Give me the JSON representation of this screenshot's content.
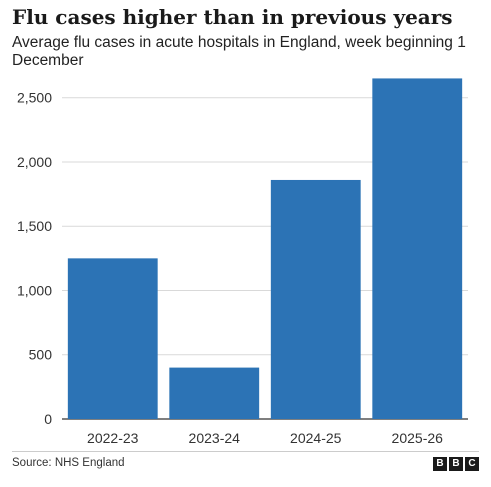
{
  "chart_data": {
    "type": "bar",
    "title": "Flu cases higher than in previous years",
    "subtitle": "Average flu cases in acute hospitals in England, week beginning 1 December",
    "categories": [
      "2022-23",
      "2023-24",
      "2024-25",
      "2025-26"
    ],
    "values": [
      1250,
      400,
      1860,
      2650
    ],
    "ylim": [
      0,
      2700
    ],
    "yticks": [
      0,
      500,
      1000,
      1500,
      2000,
      2500
    ],
    "ytick_labels": [
      "0",
      "500",
      "1,000",
      "1,500",
      "2,000",
      "2,500"
    ],
    "grid": true,
    "bar_color": "#2c73b5",
    "source": "Source: NHS England"
  },
  "logo": {
    "letters": [
      "B",
      "B",
      "C"
    ]
  }
}
